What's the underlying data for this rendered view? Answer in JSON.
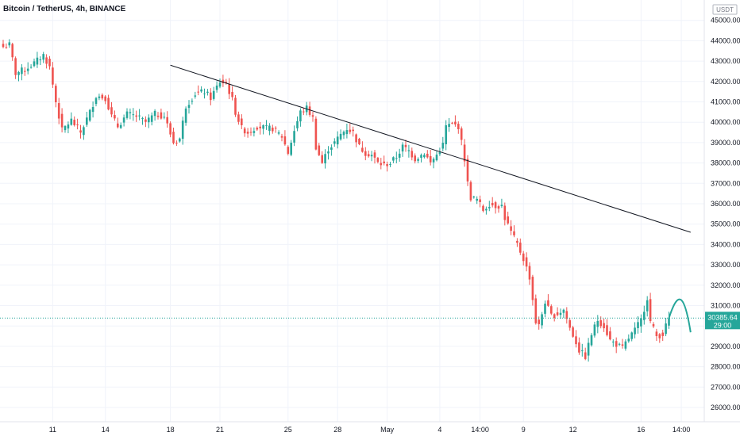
{
  "header": {
    "title": "Bitcoin / TetherUS, 4h, BINANCE"
  },
  "colors": {
    "up": "#26a69a",
    "down": "#ef5350",
    "trendline": "#131722",
    "projection": "#26a69a",
    "price_tag": "#26a69a",
    "grid": "#f0f3fa"
  },
  "chart_data": {
    "type": "candlestick",
    "title": "Bitcoin / TetherUS, 4h, BINANCE",
    "ylabel": "USDT",
    "ylim": [
      25300,
      46000
    ],
    "y_ticks": [
      26000,
      27000,
      28000,
      29000,
      30000,
      31000,
      32000,
      33000,
      34000,
      35000,
      36000,
      37000,
      38000,
      39000,
      40000,
      41000,
      42000,
      43000,
      44000,
      45000
    ],
    "x_ticks": [
      {
        "label": "11",
        "bar": 16
      },
      {
        "label": "14",
        "bar": 33
      },
      {
        "label": "18",
        "bar": 54
      },
      {
        "label": "21",
        "bar": 70
      },
      {
        "label": "25",
        "bar": 92
      },
      {
        "label": "28",
        "bar": 108
      },
      {
        "label": "May",
        "bar": 124
      },
      {
        "label": "4",
        "bar": 141
      },
      {
        "label": "14:00",
        "bar": 154
      },
      {
        "label": "9",
        "bar": 168
      },
      {
        "label": "12",
        "bar": 184
      },
      {
        "label": "16",
        "bar": 206
      },
      {
        "label": "14:00",
        "bar": 219
      }
    ],
    "anchors": [
      [
        0,
        43700
      ],
      [
        2,
        43800
      ],
      [
        4,
        42400
      ],
      [
        7,
        42600
      ],
      [
        10,
        42900
      ],
      [
        13,
        43300
      ],
      [
        15,
        42700
      ],
      [
        17,
        41000
      ],
      [
        19,
        39600
      ],
      [
        22,
        40100
      ],
      [
        25,
        39500
      ],
      [
        28,
        40500
      ],
      [
        30,
        41300
      ],
      [
        33,
        41200
      ],
      [
        35,
        40300
      ],
      [
        37,
        39800
      ],
      [
        40,
        40400
      ],
      [
        43,
        40300
      ],
      [
        46,
        40000
      ],
      [
        49,
        40400
      ],
      [
        52,
        40300
      ],
      [
        55,
        39000
      ],
      [
        57,
        39200
      ],
      [
        59,
        40800
      ],
      [
        62,
        41400
      ],
      [
        65,
        41500
      ],
      [
        67,
        41200
      ],
      [
        70,
        42000
      ],
      [
        72,
        41900
      ],
      [
        74,
        41100
      ],
      [
        75,
        40500
      ],
      [
        77,
        39700
      ],
      [
        79,
        39500
      ],
      [
        82,
        39800
      ],
      [
        85,
        39700
      ],
      [
        87,
        39700
      ],
      [
        90,
        39300
      ],
      [
        92,
        38500
      ],
      [
        94,
        39600
      ],
      [
        96,
        40500
      ],
      [
        98,
        40700
      ],
      [
        100,
        40200
      ],
      [
        101,
        38800
      ],
      [
        103,
        38000
      ],
      [
        105,
        38700
      ],
      [
        107,
        39000
      ],
      [
        109,
        39400
      ],
      [
        111,
        39700
      ],
      [
        113,
        39500
      ],
      [
        115,
        38800
      ],
      [
        117,
        38500
      ],
      [
        119,
        38400
      ],
      [
        121,
        38000
      ],
      [
        123,
        37900
      ],
      [
        125,
        38000
      ],
      [
        127,
        38300
      ],
      [
        129,
        38800
      ],
      [
        131,
        38600
      ],
      [
        133,
        38200
      ],
      [
        136,
        38500
      ],
      [
        138,
        38000
      ],
      [
        140,
        38400
      ],
      [
        142,
        38900
      ],
      [
        143,
        39800
      ],
      [
        145,
        39900
      ],
      [
        147,
        39800
      ],
      [
        149,
        38200
      ],
      [
        150,
        37000
      ],
      [
        151,
        36300
      ],
      [
        153,
        36200
      ],
      [
        155,
        35700
      ],
      [
        157,
        36000
      ],
      [
        159,
        35900
      ],
      [
        161,
        35900
      ],
      [
        162,
        35300
      ],
      [
        164,
        34600
      ],
      [
        166,
        34000
      ],
      [
        168,
        33300
      ],
      [
        170,
        32400
      ],
      [
        172,
        30200
      ],
      [
        173,
        30000
      ],
      [
        175,
        31200
      ],
      [
        177,
        30500
      ],
      [
        179,
        30600
      ],
      [
        181,
        30800
      ],
      [
        183,
        29900
      ],
      [
        185,
        29200
      ],
      [
        186,
        28800
      ],
      [
        188,
        28500
      ],
      [
        190,
        29600
      ],
      [
        192,
        30300
      ],
      [
        194,
        30000
      ],
      [
        196,
        29300
      ],
      [
        198,
        29100
      ],
      [
        200,
        28900
      ],
      [
        202,
        29400
      ],
      [
        204,
        29800
      ],
      [
        206,
        30300
      ],
      [
        208,
        31400
      ],
      [
        209,
        30200
      ],
      [
        211,
        29500
      ],
      [
        213,
        29600
      ],
      [
        215,
        30385.64
      ]
    ],
    "projection": [
      [
        215,
        30385.64
      ],
      [
        218,
        31100
      ],
      [
        220,
        30900
      ],
      [
        222,
        30000
      ]
    ],
    "trendline": {
      "start": [
        54,
        42800
      ],
      "end": [
        222,
        34600
      ]
    },
    "last_price": {
      "value": "30385.64",
      "countdown": "29:00"
    }
  }
}
